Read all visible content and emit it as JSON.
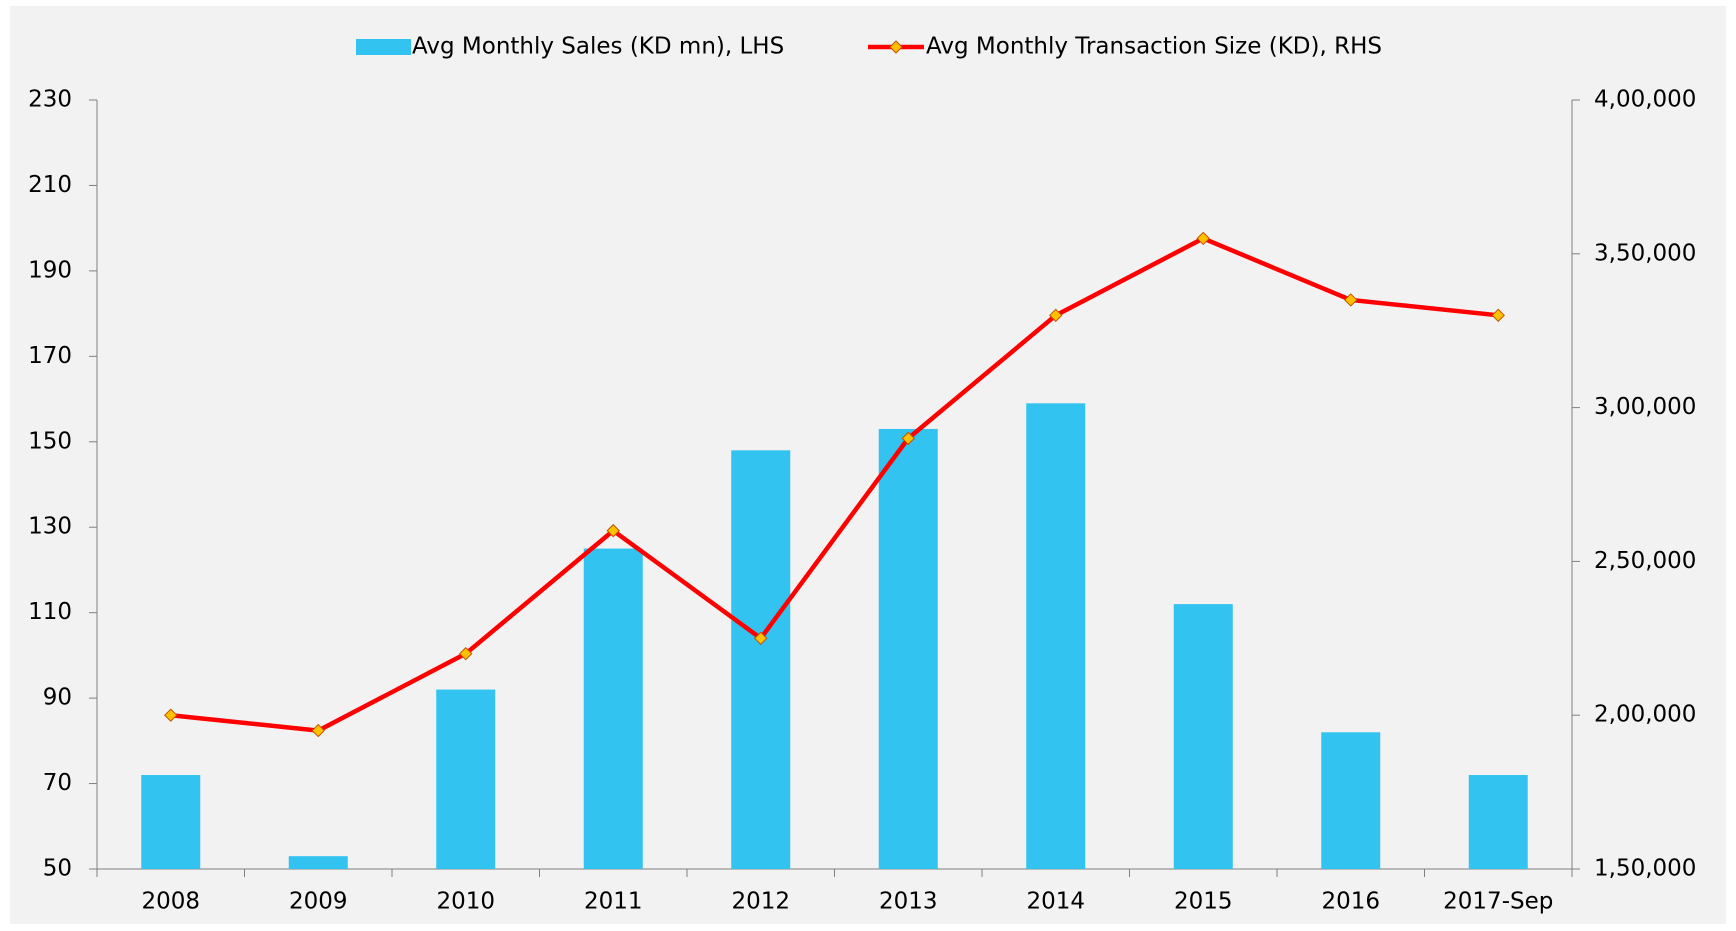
{
  "chart_data": {
    "type": "bar_line",
    "categories": [
      "2008",
      "2009",
      "2010",
      "2011",
      "2012",
      "2013",
      "2014",
      "2015",
      "2016",
      "2017-Sep"
    ],
    "series": [
      {
        "name": "Avg Monthly Sales (KD mn), LHS",
        "type": "bar",
        "color": "#33c3f0",
        "values": [
          72,
          53,
          92,
          125,
          148,
          153,
          159,
          112,
          82,
          72
        ]
      },
      {
        "name": "Avg Monthly Transaction Size (KD), RHS",
        "type": "line",
        "axis": "y2",
        "color": "#ff0000",
        "marker_color": "#ffc000",
        "values": [
          200000,
          195000,
          220000,
          260000,
          225000,
          290000,
          330000,
          355000,
          335000,
          330000
        ]
      }
    ],
    "ylim": [
      50,
      230
    ],
    "yticks": [
      50,
      70,
      90,
      110,
      130,
      150,
      170,
      190,
      210,
      230
    ],
    "y2lim": [
      150000,
      400000
    ],
    "y2ticks": [
      {
        "value": 150000,
        "label": "1,50,000"
      },
      {
        "value": 200000,
        "label": "2,00,000"
      },
      {
        "value": 250000,
        "label": "2,50,000"
      },
      {
        "value": 300000,
        "label": "3,00,000"
      },
      {
        "value": 350000,
        "label": "3,50,000"
      },
      {
        "value": 400000,
        "label": "4,00,000"
      }
    ],
    "legend": "top",
    "grid": false
  }
}
